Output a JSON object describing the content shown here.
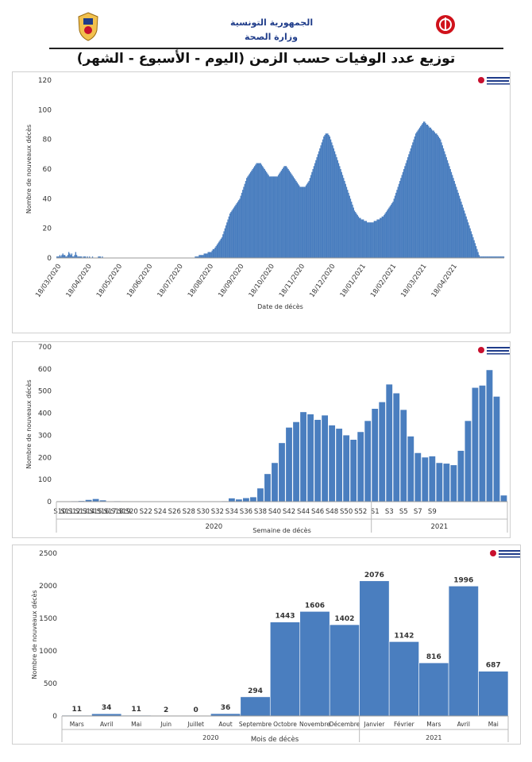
{
  "header": {
    "country": "الجمهورية التونسية",
    "ministry": "وزارة الصحة",
    "title": "توزيع عدد الوفيات حسب الزمن (اليوم - الأسبوع - الشهر)"
  },
  "chart_data": [
    {
      "type": "bar",
      "title": "",
      "xlabel": "Date de décès",
      "ylabel": "Nombre de nouveaux décès",
      "ylim": [
        0,
        120
      ],
      "yticks": [
        0,
        20,
        40,
        60,
        80,
        100,
        120
      ],
      "x_start": "18/03/2020",
      "x_end": "09/05/2021",
      "x_tick_labels": [
        "18/03/2020",
        "18/04/2020",
        "18/05/2020",
        "18/06/2020",
        "18/07/2020",
        "18/08/2020",
        "18/09/2020",
        "18/10/2020",
        "18/11/2020",
        "18/12/2020",
        "18/01/2021",
        "18/02/2021",
        "18/03/2021",
        "18/04/2021"
      ],
      "daily_values": [
        1,
        1,
        1,
        2,
        1,
        2,
        3,
        2,
        2,
        1,
        1,
        2,
        4,
        3,
        2,
        3,
        1,
        1,
        2,
        4,
        2,
        1,
        1,
        1,
        1,
        1,
        0,
        1,
        1,
        1,
        0,
        1,
        0,
        1,
        0,
        0,
        1,
        0,
        0,
        0,
        0,
        0,
        1,
        1,
        1,
        0,
        1,
        0,
        0,
        0,
        0,
        0,
        0,
        0,
        0,
        0,
        0,
        0,
        0,
        0,
        0,
        0,
        0,
        0,
        0,
        0,
        0,
        0,
        0,
        0,
        0,
        0,
        0,
        0,
        0,
        0,
        0,
        0,
        0,
        0,
        0,
        0,
        0,
        0,
        0,
        0,
        0,
        0,
        0,
        0,
        0,
        0,
        0,
        0,
        0,
        0,
        0,
        0,
        0,
        0,
        0,
        0,
        0,
        0,
        0,
        0,
        0,
        0,
        0,
        0,
        0,
        0,
        0,
        0,
        0,
        0,
        0,
        0,
        0,
        0,
        0,
        0,
        0,
        0,
        0,
        0,
        0,
        0,
        0,
        0,
        0,
        0,
        0,
        0,
        0,
        0,
        0,
        0,
        0,
        0,
        1,
        1,
        1,
        1,
        2,
        2,
        2,
        2,
        2,
        3,
        3,
        3,
        3,
        4,
        4,
        4,
        4,
        5,
        6,
        6,
        7,
        8,
        9,
        10,
        11,
        12,
        13,
        14,
        16,
        18,
        20,
        22,
        24,
        26,
        28,
        30,
        31,
        32,
        33,
        34,
        35,
        36,
        37,
        38,
        39,
        40,
        42,
        44,
        46,
        48,
        50,
        52,
        54,
        55,
        56,
        57,
        58,
        59,
        60,
        61,
        62,
        63,
        64,
        64,
        64,
        64,
        64,
        63,
        62,
        61,
        60,
        59,
        58,
        57,
        56,
        55,
        55,
        55,
        55,
        55,
        55,
        55,
        55,
        55,
        56,
        57,
        58,
        59,
        60,
        61,
        62,
        62,
        62,
        61,
        60,
        59,
        58,
        57,
        56,
        55,
        54,
        53,
        52,
        51,
        50,
        49,
        48,
        48,
        48,
        48,
        48,
        48,
        49,
        50,
        51,
        52,
        54,
        56,
        58,
        60,
        62,
        64,
        66,
        68,
        70,
        72,
        74,
        76,
        78,
        80,
        82,
        83,
        84,
        84,
        84,
        83,
        82,
        80,
        78,
        76,
        74,
        72,
        70,
        68,
        66,
        64,
        62,
        60,
        58,
        56,
        54,
        52,
        50,
        48,
        46,
        44,
        42,
        40,
        38,
        36,
        34,
        32,
        31,
        30,
        29,
        28,
        27,
        27,
        26,
        26,
        26,
        25,
        25,
        25,
        24,
        24,
        24,
        24,
        24,
        24,
        24,
        25,
        25,
        25,
        26,
        26,
        26,
        27,
        27,
        28,
        28,
        29,
        30,
        31,
        32,
        33,
        34,
        35,
        36,
        37,
        38,
        40,
        42,
        44,
        46,
        48,
        50,
        52,
        54,
        56,
        58,
        60,
        62,
        64,
        66,
        68,
        70,
        72,
        74,
        76,
        78,
        80,
        82,
        84,
        85,
        86,
        87,
        88,
        89,
        90,
        91,
        92,
        92,
        91,
        90,
        90,
        89,
        88,
        88,
        87,
        86,
        86,
        85,
        84,
        84,
        83,
        82,
        81,
        80,
        78,
        76,
        74,
        72,
        70,
        68,
        66,
        64,
        62,
        60,
        58,
        56,
        54,
        52,
        50,
        48,
        46,
        44,
        42,
        40,
        38,
        36,
        34,
        32,
        30,
        28,
        26,
        24,
        22,
        20,
        18,
        16,
        14,
        12,
        10,
        8,
        6,
        4,
        2,
        1,
        1,
        1,
        1,
        1,
        1,
        1,
        1,
        1,
        1,
        1,
        1,
        1,
        1,
        1,
        1,
        1,
        1,
        1,
        1,
        1,
        1,
        1,
        1,
        1
      ]
    },
    {
      "type": "bar",
      "title": "",
      "xlabel": "Semaine de décès",
      "ylabel": "Nombre de nouveaux décès",
      "ylim": [
        0,
        700
      ],
      "yticks": [
        0,
        100,
        200,
        300,
        400,
        500,
        600,
        700
      ],
      "categories": [
        "S10",
        "S11",
        "S12",
        "S13",
        "S14",
        "S15",
        "S16",
        "S17",
        "S18",
        "S19",
        "S20",
        "S21",
        "S22",
        "S23",
        "S24",
        "S25",
        "S26",
        "S27",
        "S28",
        "S29",
        "S30",
        "S31",
        "S32",
        "S33",
        "S34",
        "S35",
        "S36",
        "S37",
        "S38",
        "S39",
        "S40",
        "S41",
        "S42",
        "S43",
        "S44",
        "S45",
        "S46",
        "S47",
        "S48",
        "S49",
        "S50",
        "S51",
        "S52",
        "S53",
        "S1",
        "S2",
        "S3",
        "S4",
        "S5",
        "S6",
        "S7",
        "S8",
        "S9",
        "S10",
        "S11",
        "S12",
        "S13",
        "S14",
        "S15",
        "S16",
        "S17",
        "S18",
        "S19"
      ],
      "tick_labels": [
        "S10",
        "S12",
        "S14",
        "S16",
        "S18",
        "S20",
        "S22",
        "S24",
        "S26",
        "S28",
        "S30",
        "S32",
        "S34",
        "S36",
        "S38",
        "S40",
        "S42",
        "S44",
        "S46",
        "S48",
        "S50",
        "S52",
        "S1",
        "S3",
        "S5",
        "S7",
        "S9",
        "S11",
        "S13",
        "S15",
        "S17",
        "S19"
      ],
      "values": [
        0,
        0,
        2,
        3,
        8,
        12,
        6,
        1,
        2,
        0,
        0,
        0,
        0,
        0,
        0,
        0,
        0,
        0,
        0,
        0,
        0,
        0,
        1,
        2,
        15,
        10,
        16,
        20,
        60,
        125,
        175,
        265,
        335,
        360,
        405,
        395,
        370,
        390,
        345,
        330,
        300,
        280,
        315,
        365,
        420,
        450,
        530,
        490,
        415,
        295,
        220,
        200,
        205,
        175,
        172,
        165,
        230,
        365,
        515,
        525,
        595,
        475,
        28
      ],
      "group_labels": [
        "2020",
        "2021"
      ]
    },
    {
      "type": "bar",
      "title": "",
      "xlabel": "Mois de décès",
      "ylabel": "Nombre de nouveaux décès",
      "ylim": [
        0,
        2500
      ],
      "yticks": [
        0,
        500,
        1000,
        1500,
        2000,
        2500
      ],
      "categories": [
        "Mars",
        "Avril",
        "Mai",
        "Juin",
        "Juillet",
        "Aout",
        "Septembre",
        "Octobre",
        "Novembre",
        "Décembre",
        "Janvier",
        "Février",
        "Mars",
        "Avril",
        "Mai"
      ],
      "values": [
        11,
        34,
        11,
        2,
        0,
        36,
        294,
        1443,
        1606,
        1402,
        2076,
        1142,
        816,
        1996,
        687
      ],
      "group_labels": [
        "2020",
        "2021"
      ]
    }
  ]
}
